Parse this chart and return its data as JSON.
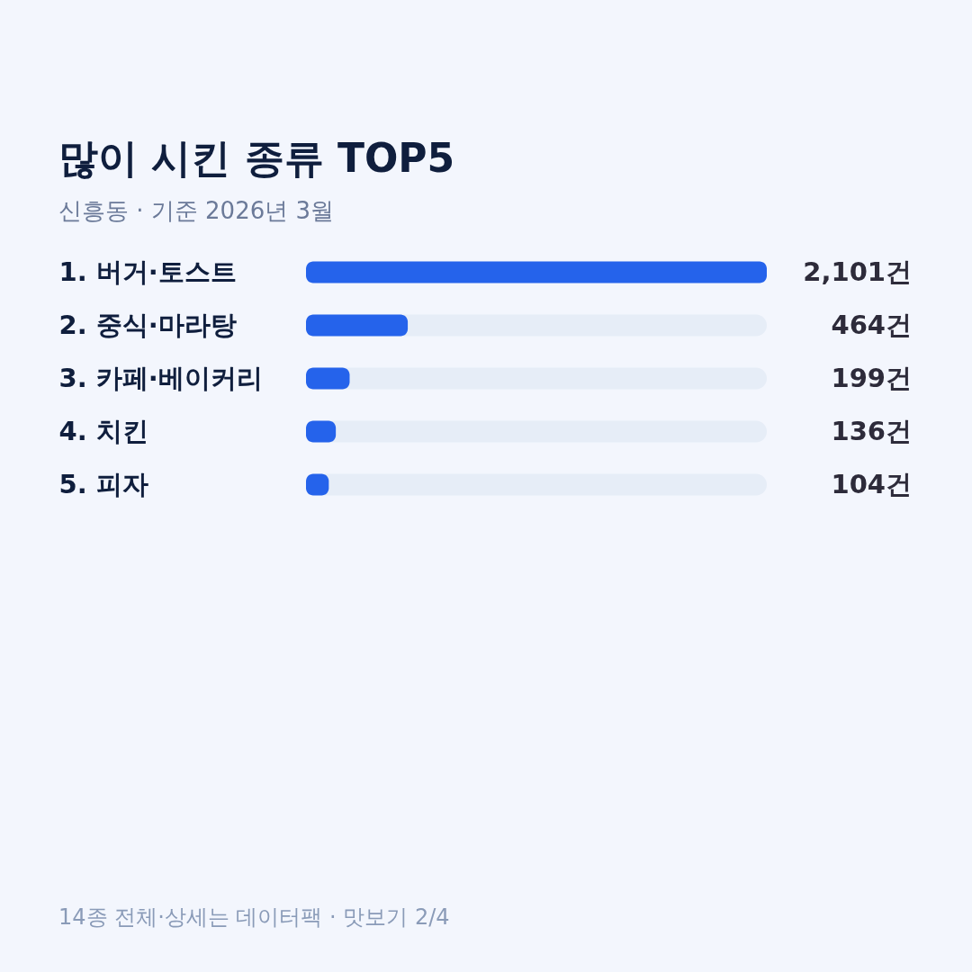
{
  "chart_data": {
    "type": "bar",
    "orientation": "horizontal",
    "title": "많이 시킨 종류 TOP5",
    "subtitle": "신흥동 · 기준 2026년 3월",
    "categories": [
      "1. 버거·토스트",
      "2. 중식·마라탕",
      "3. 카페·베이커리",
      "4. 치킨",
      "5. 피자"
    ],
    "values": [
      2101,
      464,
      199,
      136,
      104
    ],
    "color": "#2563eb",
    "value_labels": [
      "2,101건",
      "464건",
      "199건",
      "136건",
      "104건"
    ],
    "xlim": [
      0,
      2101
    ],
    "tick_labels": "y",
    "bands": [
      {
        "axis": "x",
        "from": 0,
        "to": 2101,
        "color": "#e6edf7"
      }
    ],
    "annotations": [
      "14종 전체·상세는 데이터팩 · 맛보기 2/4"
    ]
  }
}
